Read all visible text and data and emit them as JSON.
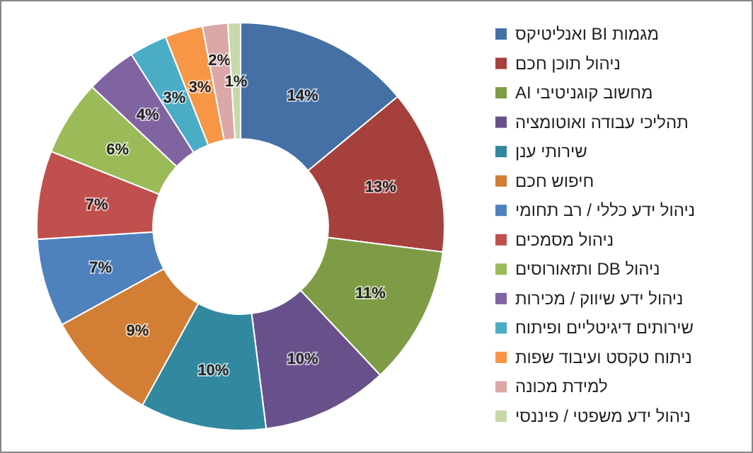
{
  "chart_data": {
    "type": "donut",
    "categories": [
      "מגמות BI ואנליטיקס",
      "ניהול תוכן חכם",
      "מחשוב קוגניטיבי AI",
      "תהליכי עבודה ואוטומציה",
      "שירותי ענן",
      "חיפוש חכם",
      "ניהול ידע כללי / רב תחומי",
      "ניהול מסמכים",
      "ניהול DB ותזאורוסים",
      "ניהול ידע שיווק / מכירות",
      "שירותים דיגיטליים ופיתוח",
      "ניתוח טקסט ועיבוד שפות",
      "למידת מכונה",
      "ניהול ידע משפטי / פיננסי"
    ],
    "values": [
      14,
      13,
      11,
      10,
      10,
      9,
      7,
      7,
      6,
      4,
      3,
      3,
      2,
      1
    ],
    "value_labels": [
      "14%",
      "13%",
      "11%",
      "10%",
      "10%",
      "9%",
      "7%",
      "7%",
      "6%",
      "4%",
      "3%",
      "3%",
      "2%",
      "1%"
    ],
    "colors": [
      "#4470a6",
      "#a6403d",
      "#7e9c45",
      "#68518b",
      "#32889f",
      "#d27f35",
      "#4f81bd",
      "#c0504d",
      "#9bbb59",
      "#8064a2",
      "#4bacc6",
      "#f79646",
      "#dba8a7",
      "#c7d9a9"
    ],
    "legend": "right"
  }
}
